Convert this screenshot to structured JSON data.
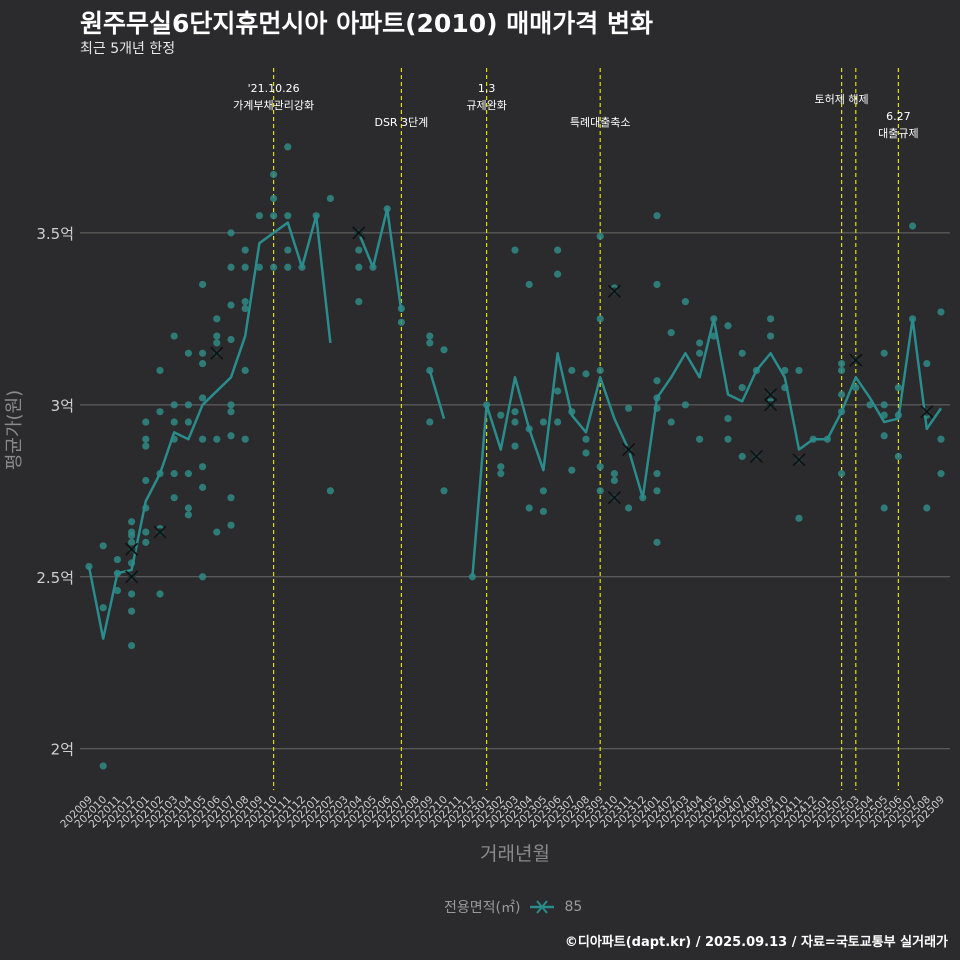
{
  "title": "원주무실6단지휴먼시아 아파트(2010) 매매가격 변화",
  "subtitle": "최근 5개년 한정",
  "caption": "©디아파트(dapt.kr) / 2025.09.13 / 자료=국토교통부 실거래가",
  "colors": {
    "background": "#2b2a2c",
    "series": "#2a8c8c",
    "point": "#2f8a86",
    "vline": "#e0e000",
    "grid": "#6a6a6a",
    "axis_text": "#d0d0d0"
  },
  "legend": {
    "title": "전용면적(㎡)",
    "items": [
      "85"
    ]
  },
  "chart_data": {
    "type": "line",
    "xlabel": "거래년월",
    "ylabel": "평균가(원)",
    "ylim": [
      1.88,
      3.93
    ],
    "yticks": [
      2,
      2.5,
      3,
      3.5
    ],
    "ytick_labels": [
      "2억",
      "2.5억",
      "3억",
      "3.5억"
    ],
    "x": [
      "202009",
      "202010",
      "202011",
      "202012",
      "202101",
      "202102",
      "202103",
      "202104",
      "202105",
      "202106",
      "202107",
      "202108",
      "202109",
      "202110",
      "202111",
      "202112",
      "202201",
      "202202",
      "202203",
      "202204",
      "202205",
      "202206",
      "202207",
      "202208",
      "202209",
      "202210",
      "202211",
      "202212",
      "202301",
      "202302",
      "202303",
      "202304",
      "202305",
      "202306",
      "202307",
      "202308",
      "202309",
      "202310",
      "202311",
      "202312",
      "202401",
      "202402",
      "202403",
      "202404",
      "202405",
      "202406",
      "202407",
      "202408",
      "202409",
      "202410",
      "202411",
      "202412",
      "202501",
      "202502",
      "202503",
      "202504",
      "202505",
      "202506",
      "202507",
      "202508",
      "202509"
    ],
    "series": [
      {
        "name": "85",
        "values": [
          2.53,
          2.32,
          2.51,
          2.52,
          2.72,
          2.8,
          2.92,
          2.9,
          3.0,
          3.04,
          3.08,
          3.2,
          3.47,
          3.5,
          3.53,
          3.4,
          3.55,
          3.18,
          null,
          3.5,
          3.4,
          3.57,
          3.27,
          null,
          3.1,
          2.96,
          null,
          2.5,
          3.0,
          2.87,
          3.08,
          2.93,
          2.81,
          3.15,
          2.97,
          2.92,
          3.08,
          2.96,
          2.87,
          2.73,
          3.02,
          3.08,
          3.15,
          3.08,
          3.25,
          3.03,
          3.01,
          3.1,
          3.15,
          3.08,
          2.87,
          2.9,
          2.9,
          2.98,
          3.08,
          3.02,
          2.95,
          2.96,
          3.25,
          2.93,
          2.99
        ]
      }
    ],
    "points": [
      [
        0,
        2.53
      ],
      [
        1,
        2.41
      ],
      [
        1,
        1.95
      ],
      [
        1,
        2.59
      ],
      [
        2,
        2.55
      ],
      [
        2,
        2.46
      ],
      [
        2,
        2.51
      ],
      [
        3,
        2.6
      ],
      [
        3,
        2.63
      ],
      [
        3,
        2.54
      ],
      [
        3,
        2.5
      ],
      [
        3,
        2.45
      ],
      [
        3,
        2.4
      ],
      [
        3,
        2.3
      ],
      [
        3,
        2.62
      ],
      [
        3,
        2.66
      ],
      [
        4,
        2.95
      ],
      [
        4,
        2.88
      ],
      [
        4,
        2.63
      ],
      [
        4,
        2.6
      ],
      [
        4,
        2.7
      ],
      [
        4,
        2.78
      ],
      [
        4,
        2.9
      ],
      [
        5,
        2.8
      ],
      [
        5,
        2.98
      ],
      [
        5,
        3.1
      ],
      [
        5,
        2.64
      ],
      [
        5,
        2.45
      ],
      [
        6,
        3.0
      ],
      [
        6,
        3.2
      ],
      [
        6,
        2.95
      ],
      [
        6,
        2.8
      ],
      [
        6,
        2.9
      ],
      [
        6,
        2.73
      ],
      [
        7,
        3.15
      ],
      [
        7,
        3.0
      ],
      [
        7,
        2.95
      ],
      [
        7,
        2.8
      ],
      [
        7,
        2.7
      ],
      [
        7,
        2.68
      ],
      [
        8,
        3.35
      ],
      [
        8,
        3.15
      ],
      [
        8,
        3.12
      ],
      [
        8,
        3.02
      ],
      [
        8,
        2.9
      ],
      [
        8,
        2.82
      ],
      [
        8,
        2.76
      ],
      [
        8,
        2.5
      ],
      [
        9,
        3.25
      ],
      [
        9,
        3.2
      ],
      [
        9,
        3.15
      ],
      [
        9,
        3.18
      ],
      [
        9,
        2.9
      ],
      [
        9,
        2.63
      ],
      [
        10,
        3.5
      ],
      [
        10,
        3.4
      ],
      [
        10,
        3.29
      ],
      [
        10,
        3.19
      ],
      [
        10,
        3.0
      ],
      [
        10,
        2.98
      ],
      [
        10,
        2.91
      ],
      [
        10,
        2.73
      ],
      [
        10,
        2.65
      ],
      [
        11,
        3.45
      ],
      [
        11,
        3.4
      ],
      [
        11,
        3.3
      ],
      [
        11,
        3.28
      ],
      [
        11,
        3.1
      ],
      [
        11,
        2.9
      ],
      [
        12,
        3.55
      ],
      [
        12,
        3.4
      ],
      [
        13,
        3.67
      ],
      [
        13,
        3.6
      ],
      [
        13,
        3.55
      ],
      [
        13,
        3.4
      ],
      [
        14,
        3.75
      ],
      [
        14,
        3.55
      ],
      [
        14,
        3.45
      ],
      [
        14,
        3.4
      ],
      [
        15,
        3.4
      ],
      [
        16,
        3.55
      ],
      [
        17,
        3.6
      ],
      [
        17,
        2.75
      ],
      [
        19,
        3.5
      ],
      [
        19,
        3.45
      ],
      [
        19,
        3.4
      ],
      [
        19,
        3.3
      ],
      [
        20,
        3.4
      ],
      [
        21,
        3.57
      ],
      [
        22,
        3.28
      ],
      [
        22,
        3.24
      ],
      [
        24,
        3.2
      ],
      [
        24,
        3.18
      ],
      [
        24,
        3.1
      ],
      [
        24,
        2.95
      ],
      [
        25,
        3.16
      ],
      [
        25,
        2.75
      ],
      [
        27,
        2.5
      ],
      [
        28,
        3.0
      ],
      [
        29,
        2.97
      ],
      [
        29,
        2.82
      ],
      [
        29,
        2.8
      ],
      [
        30,
        3.45
      ],
      [
        30,
        2.98
      ],
      [
        30,
        2.95
      ],
      [
        30,
        2.88
      ],
      [
        31,
        3.35
      ],
      [
        31,
        2.93
      ],
      [
        31,
        2.7
      ],
      [
        32,
        2.95
      ],
      [
        32,
        2.75
      ],
      [
        32,
        2.69
      ],
      [
        33,
        3.45
      ],
      [
        33,
        3.38
      ],
      [
        33,
        3.04
      ],
      [
        33,
        2.95
      ],
      [
        34,
        3.1
      ],
      [
        34,
        2.98
      ],
      [
        34,
        2.81
      ],
      [
        35,
        3.09
      ],
      [
        35,
        2.9
      ],
      [
        35,
        2.86
      ],
      [
        36,
        3.49
      ],
      [
        36,
        3.25
      ],
      [
        36,
        3.1
      ],
      [
        36,
        2.82
      ],
      [
        36,
        2.75
      ],
      [
        37,
        3.34
      ],
      [
        37,
        2.8
      ],
      [
        37,
        2.78
      ],
      [
        37,
        2.73
      ],
      [
        38,
        2.99
      ],
      [
        38,
        2.87
      ],
      [
        38,
        2.7
      ],
      [
        39,
        2.73
      ],
      [
        40,
        3.55
      ],
      [
        40,
        3.35
      ],
      [
        40,
        3.07
      ],
      [
        40,
        3.02
      ],
      [
        40,
        2.99
      ],
      [
        40,
        2.8
      ],
      [
        40,
        2.75
      ],
      [
        40,
        2.6
      ],
      [
        41,
        3.21
      ],
      [
        41,
        2.95
      ],
      [
        42,
        3.3
      ],
      [
        42,
        3.0
      ],
      [
        43,
        3.18
      ],
      [
        43,
        3.15
      ],
      [
        43,
        2.9
      ],
      [
        44,
        3.25
      ],
      [
        44,
        3.2
      ],
      [
        45,
        3.23
      ],
      [
        45,
        2.96
      ],
      [
        45,
        2.9
      ],
      [
        46,
        3.15
      ],
      [
        46,
        3.05
      ],
      [
        46,
        2.85
      ],
      [
        47,
        3.1
      ],
      [
        48,
        3.25
      ],
      [
        48,
        3.2
      ],
      [
        48,
        3.03
      ],
      [
        48,
        3.01
      ],
      [
        48,
        3.0
      ],
      [
        49,
        3.1
      ],
      [
        49,
        3.05
      ],
      [
        50,
        3.1
      ],
      [
        50,
        2.84
      ],
      [
        50,
        2.67
      ],
      [
        51,
        2.9
      ],
      [
        52,
        2.9
      ],
      [
        53,
        3.12
      ],
      [
        53,
        3.1
      ],
      [
        53,
        3.03
      ],
      [
        53,
        2.98
      ],
      [
        53,
        2.8
      ],
      [
        54,
        3.13
      ],
      [
        54,
        3.05
      ],
      [
        55,
        3.0
      ],
      [
        56,
        3.15
      ],
      [
        56,
        3.0
      ],
      [
        56,
        2.97
      ],
      [
        56,
        2.91
      ],
      [
        56,
        2.7
      ],
      [
        57,
        3.05
      ],
      [
        57,
        2.97
      ],
      [
        57,
        2.85
      ],
      [
        58,
        3.52
      ],
      [
        58,
        3.25
      ],
      [
        59,
        3.12
      ],
      [
        59,
        2.97
      ],
      [
        59,
        2.7
      ],
      [
        60,
        3.27
      ],
      [
        60,
        2.9
      ],
      [
        60,
        2.8
      ]
    ],
    "cross_points": [
      [
        3,
        2.58
      ],
      [
        3,
        2.5
      ],
      [
        5,
        2.63
      ],
      [
        9,
        3.15
      ],
      [
        19,
        3.5
      ],
      [
        37,
        3.33
      ],
      [
        37,
        2.73
      ],
      [
        38,
        2.87
      ],
      [
        47,
        2.85
      ],
      [
        48,
        3.03
      ],
      [
        48,
        3.0
      ],
      [
        50,
        2.84
      ],
      [
        54,
        3.13
      ],
      [
        59,
        2.98
      ]
    ],
    "events": [
      {
        "index": 13,
        "date": "'21.10.26",
        "label": "가계부채관리강화",
        "row": 0
      },
      {
        "index": 22,
        "date": "",
        "label": "DSR 3단계",
        "row": 1
      },
      {
        "index": 28,
        "date": "1.3",
        "label": "규제완화",
        "row": 0
      },
      {
        "index": 36,
        "date": "",
        "label": "특례대출축소",
        "row": 1
      },
      {
        "index": 53,
        "date": "",
        "label": "토허제 해제",
        "row": 0
      },
      {
        "index": 54,
        "date": "",
        "label": "",
        "row": 0
      },
      {
        "index": 57,
        "date": "6.27",
        "label": "대출규제",
        "row": 2
      }
    ]
  }
}
